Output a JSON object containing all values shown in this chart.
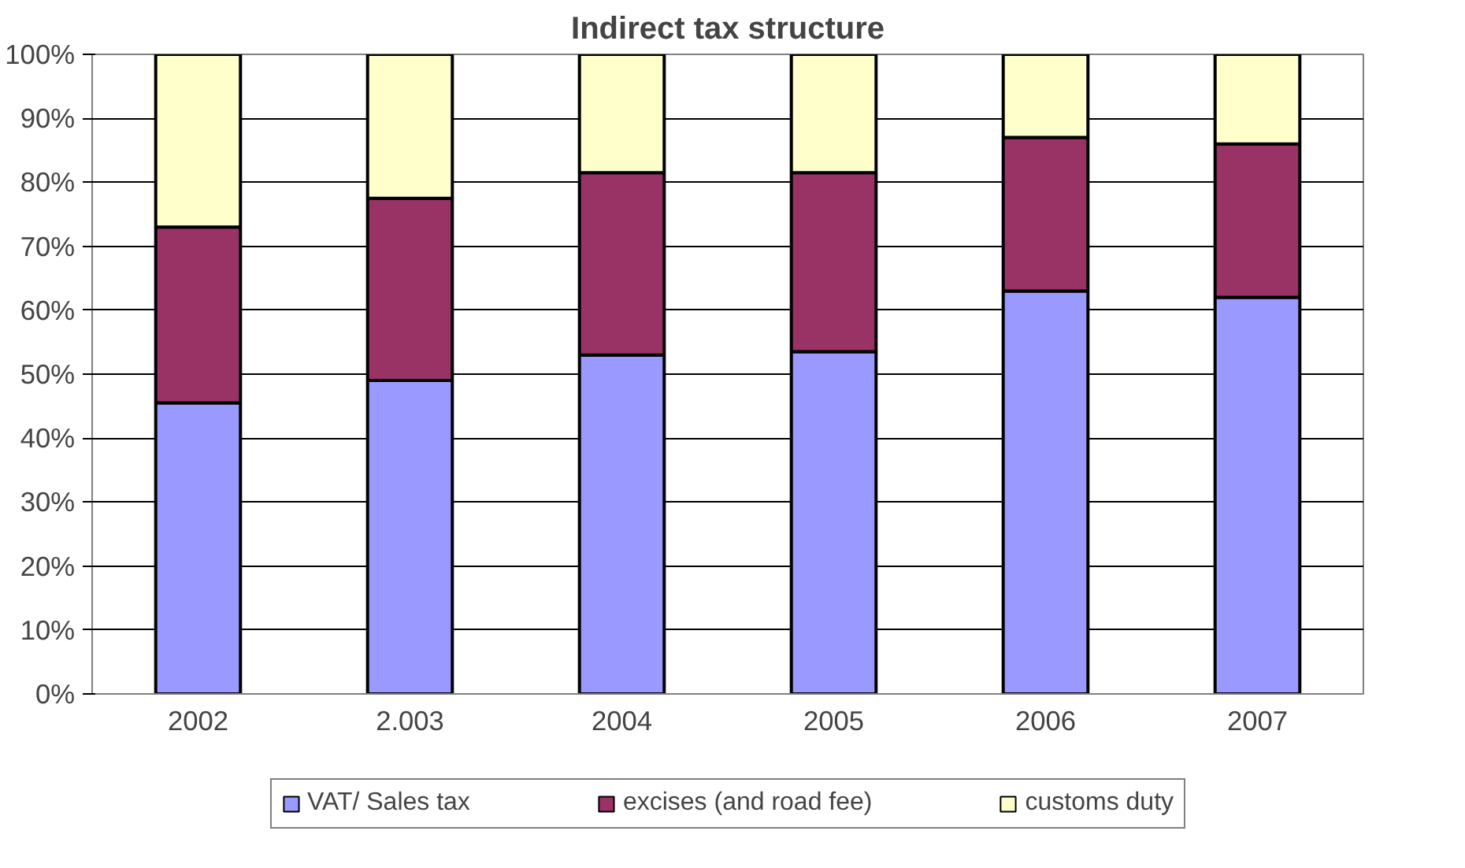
{
  "chart_data": {
    "type": "bar",
    "title": "Indirect tax structure",
    "stacked": true,
    "categories": [
      "2002",
      "2.003",
      "2004",
      "2005",
      "2006",
      "2007"
    ],
    "series": [
      {
        "name": "VAT/ Sales tax",
        "color": "#9999ff",
        "values": [
          45.5,
          49,
          53,
          53.5,
          63,
          62
        ]
      },
      {
        "name": "excises (and road fee)",
        "color": "#993366",
        "values": [
          27.5,
          28.5,
          28.5,
          28,
          24,
          24
        ]
      },
      {
        "name": "customs duty",
        "color": "#ffffcc",
        "values": [
          27,
          22.5,
          18.5,
          18.5,
          13,
          14
        ]
      }
    ],
    "ylim": [
      0,
      100
    ],
    "yticks": [
      {
        "value": 0,
        "label": "0%"
      },
      {
        "value": 10,
        "label": "10%"
      },
      {
        "value": 20,
        "label": "20%"
      },
      {
        "value": 30,
        "label": "30%"
      },
      {
        "value": 40,
        "label": "40%"
      },
      {
        "value": 50,
        "label": "50%"
      },
      {
        "value": 60,
        "label": "60%"
      },
      {
        "value": 70,
        "label": "70%"
      },
      {
        "value": 80,
        "label": "80%"
      },
      {
        "value": 90,
        "label": "90%"
      },
      {
        "value": 100,
        "label": "100%"
      }
    ],
    "grid": "y",
    "legend": "bottom"
  }
}
